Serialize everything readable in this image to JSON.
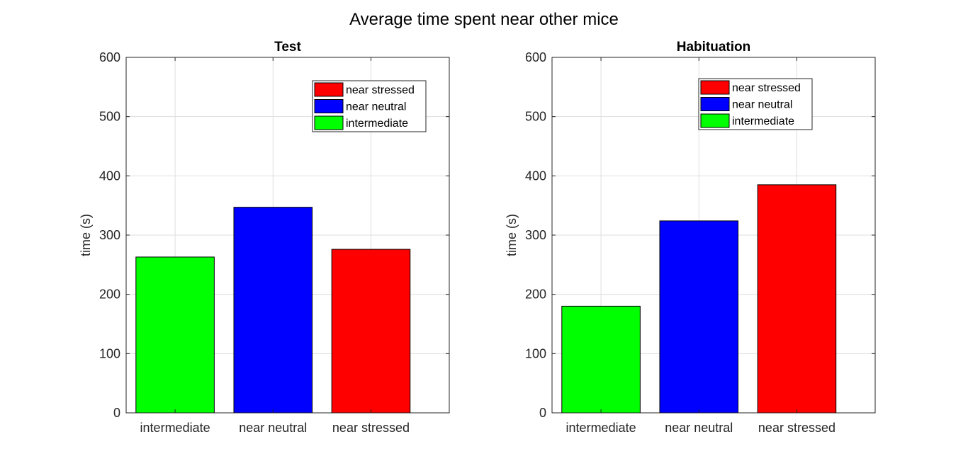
{
  "figure": {
    "title": "Average time spent near other mice"
  },
  "chart_data": [
    {
      "type": "bar",
      "title": "Test",
      "xlabel": "",
      "ylabel": "time (s)",
      "ylim": [
        0,
        600
      ],
      "yticks": [
        "0",
        "100",
        "200",
        "300",
        "400",
        "500",
        "600"
      ],
      "grid": true,
      "legend_position": "top-right",
      "categories": [
        "intermediate",
        "near neutral",
        "near stressed"
      ],
      "values": [
        263,
        347,
        276
      ],
      "colors": [
        "#00ff00",
        "#0000ff",
        "#ff0000"
      ],
      "legend": [
        {
          "label": "near stressed",
          "color": "#ff0000"
        },
        {
          "label": "near neutral",
          "color": "#0000ff"
        },
        {
          "label": "intermediate",
          "color": "#00ff00"
        }
      ]
    },
    {
      "type": "bar",
      "title": "Habituation",
      "xlabel": "",
      "ylabel": "time (s)",
      "ylim": [
        0,
        600
      ],
      "yticks": [
        "0",
        "100",
        "200",
        "300",
        "400",
        "500",
        "600"
      ],
      "grid": true,
      "legend_position": "top-right",
      "categories": [
        "intermediate",
        "near neutral",
        "near stressed"
      ],
      "values": [
        180,
        324,
        385
      ],
      "colors": [
        "#00ff00",
        "#0000ff",
        "#ff0000"
      ],
      "legend": [
        {
          "label": "near stressed",
          "color": "#ff0000"
        },
        {
          "label": "near neutral",
          "color": "#0000ff"
        },
        {
          "label": "intermediate",
          "color": "#00ff00"
        }
      ]
    }
  ]
}
